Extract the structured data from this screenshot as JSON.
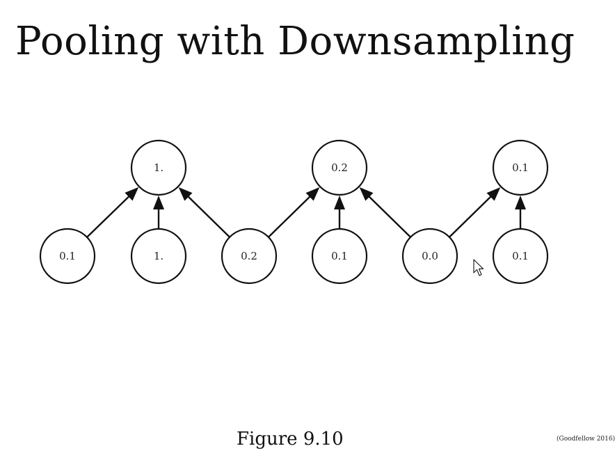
{
  "slide": {
    "title": "Pooling with Downsampling",
    "caption": "Figure 9.10",
    "citation": "(Goodfellow 2016)"
  },
  "diagram": {
    "pooled_nodes": [
      {
        "id": "pooled-1",
        "label": "1."
      },
      {
        "id": "pooled-2",
        "label": "0.2"
      },
      {
        "id": "pooled-3",
        "label": "0.1"
      }
    ],
    "input_nodes": [
      {
        "id": "input-1",
        "label": "0.1"
      },
      {
        "id": "input-2",
        "label": "1."
      },
      {
        "id": "input-3",
        "label": "0.2"
      },
      {
        "id": "input-4",
        "label": "0.1"
      },
      {
        "id": "input-5",
        "label": "0.0"
      },
      {
        "id": "input-6",
        "label": "0.1"
      }
    ],
    "edges": [
      {
        "from": "input-1",
        "to": "pooled-1"
      },
      {
        "from": "input-2",
        "to": "pooled-1"
      },
      {
        "from": "input-3",
        "to": "pooled-1"
      },
      {
        "from": "input-3",
        "to": "pooled-2"
      },
      {
        "from": "input-4",
        "to": "pooled-2"
      },
      {
        "from": "input-5",
        "to": "pooled-2"
      },
      {
        "from": "input-5",
        "to": "pooled-3"
      },
      {
        "from": "input-6",
        "to": "pooled-3"
      }
    ]
  }
}
